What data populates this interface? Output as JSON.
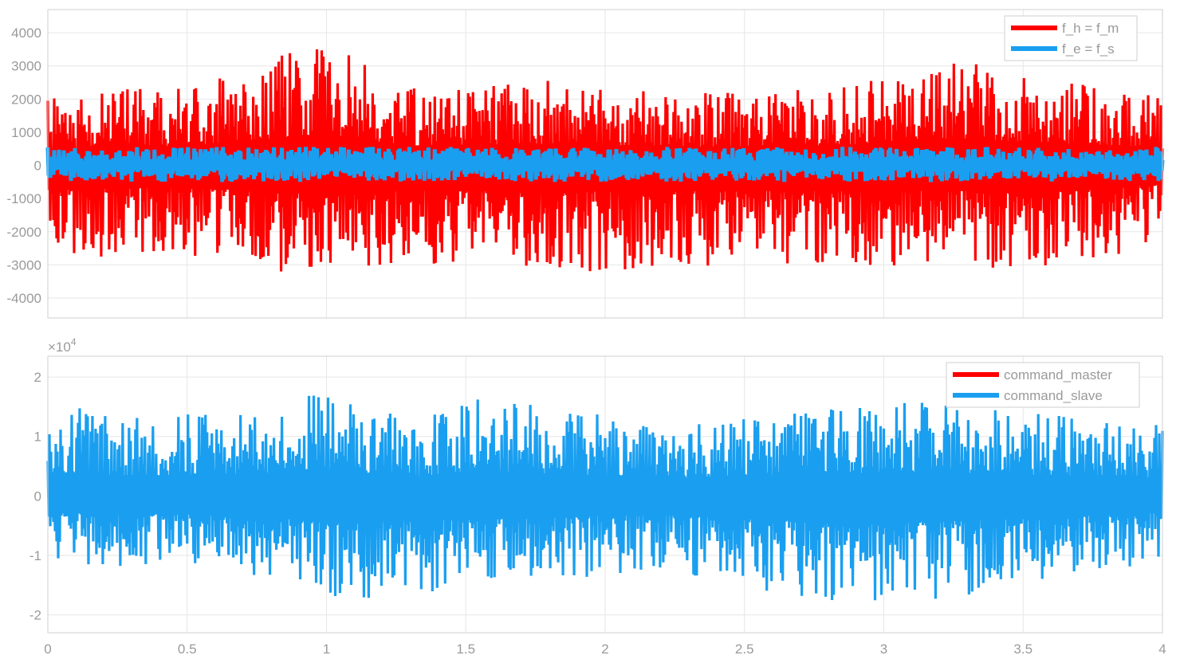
{
  "chart_data": [
    {
      "type": "line",
      "title": "",
      "xlabel": "",
      "ylabel": "",
      "xlim": [
        0,
        4
      ],
      "ylim": [
        -4600,
        4700
      ],
      "x_ticks": [
        0,
        0.5,
        1,
        1.5,
        2,
        2.5,
        3,
        3.5,
        4
      ],
      "x_tick_labels": [
        "0",
        "0.5",
        "1",
        "1.5",
        "2",
        "2.5",
        "3",
        "3.5",
        "4"
      ],
      "y_ticks": [
        4000,
        3000,
        2000,
        1000,
        0,
        -1000,
        -2000,
        -3000,
        -4000
      ],
      "y_tick_labels": [
        "4000",
        "3000",
        "2000",
        "1000",
        "0",
        "-1000",
        "-2000",
        "-3000",
        "-4000"
      ],
      "grid": true,
      "legend_position": "top-right",
      "series": [
        {
          "name": "f_h = f_m",
          "color": "#ff0000",
          "envelope_points": [
            [
              0,
              2000
            ],
            [
              0.25,
              2300
            ],
            [
              0.5,
              2400
            ],
            [
              0.77,
              3100
            ],
            [
              0.98,
              3750
            ],
            [
              1.3,
              2400
            ],
            [
              1.75,
              2600
            ],
            [
              2.5,
              2200
            ],
            [
              3.1,
              2700
            ],
            [
              3.25,
              3300
            ],
            [
              3.5,
              2800
            ],
            [
              3.9,
              2300
            ],
            [
              4,
              2000
            ]
          ],
          "envelope_points_neg": [
            [
              0,
              -2000
            ],
            [
              0.08,
              -2900
            ],
            [
              0.38,
              -2700
            ],
            [
              0.76,
              -2950
            ],
            [
              0.99,
              -3700
            ],
            [
              1.13,
              -3100
            ],
            [
              1.55,
              -2900
            ],
            [
              1.75,
              -3250
            ],
            [
              2.6,
              -3000
            ],
            [
              3.35,
              -3100
            ],
            [
              3.5,
              -3400
            ],
            [
              3.9,
              -2600
            ],
            [
              4,
              -1900
            ]
          ],
          "approx_range": [
            -3700,
            3750
          ]
        },
        {
          "name": "f_e = f_s",
          "color": "#1a9ff0",
          "approx_range": [
            -500,
            560
          ]
        }
      ]
    },
    {
      "type": "line",
      "title": "",
      "xlabel": "",
      "ylabel": "",
      "xlim": [
        0,
        4
      ],
      "ylim": [
        -23000,
        23500
      ],
      "y_exponent_label_base": "×10",
      "y_exponent_label_power": "4",
      "x_ticks": [
        0,
        0.5,
        1,
        1.5,
        2,
        2.5,
        3,
        3.5,
        4
      ],
      "x_tick_labels": [
        "0",
        "0.5",
        "1",
        "1.5",
        "2",
        "2.5",
        "3",
        "3.5",
        "4"
      ],
      "y_ticks": [
        20000,
        10000,
        0,
        -10000,
        -20000
      ],
      "y_tick_labels": [
        "2",
        "1",
        "0",
        "-1",
        "-2"
      ],
      "grid": true,
      "legend_position": "top-right",
      "series": [
        {
          "name": "command_master",
          "color": "#ff0000"
        },
        {
          "name": "command_slave",
          "color": "#1a9ff0",
          "envelope_points": [
            [
              0,
              11000
            ],
            [
              0.08,
              15000
            ],
            [
              0.38,
              13500
            ],
            [
              0.75,
              15000
            ],
            [
              0.98,
              18500
            ],
            [
              1.3,
              13000
            ],
            [
              1.55,
              16500
            ],
            [
              2.3,
              12000
            ],
            [
              3.1,
              16000
            ],
            [
              3.3,
              15500
            ],
            [
              3.55,
              14000
            ],
            [
              4,
              12000
            ]
          ],
          "envelope_points_neg": [
            [
              0,
              -10000
            ],
            [
              0.1,
              -11500
            ],
            [
              0.38,
              -12000
            ],
            [
              0.76,
              -13500
            ],
            [
              0.98,
              -18000
            ],
            [
              1.55,
              -15500
            ],
            [
              2.2,
              -12500
            ],
            [
              2.8,
              -18000
            ],
            [
              3.15,
              -17500
            ],
            [
              3.5,
              -15500
            ],
            [
              3.9,
              -12000
            ],
            [
              4,
              -10000
            ]
          ],
          "approx_range": [
            -18000,
            18500
          ]
        }
      ]
    }
  ]
}
